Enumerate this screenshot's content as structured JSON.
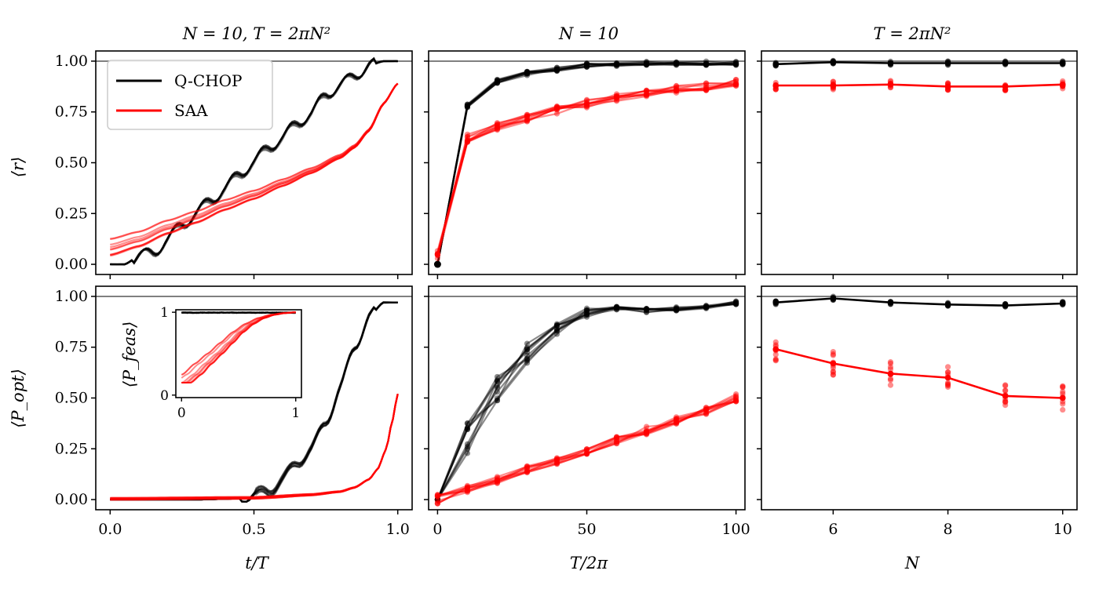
{
  "chart_data": {
    "type": "line",
    "colors": {
      "qchop": "#000000",
      "saa": "#ff0000",
      "reference": "#808080"
    },
    "legend": {
      "placement": "top-left of top-left panel",
      "entries": [
        "Q-CHOP",
        "SAA"
      ]
    },
    "column_titles": [
      "N = 10, T = 2πN²",
      "N = 10",
      "T = 2πN²"
    ],
    "row_ylabels": [
      "⟨r⟩",
      "⟨P_opt⟩"
    ],
    "column_xlabels": [
      "t/T",
      "T/2π",
      "N"
    ],
    "reference_line": 1.0,
    "yticks": [
      "0.00",
      "0.25",
      "0.50",
      "0.75",
      "1.00"
    ],
    "ylim": [
      -0.05,
      1.05
    ],
    "panels": [
      {
        "id": "r-vs-t",
        "row": 0,
        "col": 0,
        "xlim": [
          -0.05,
          1.05
        ],
        "ylim": [
          -0.05,
          1.05
        ],
        "xticks": [
          "0.0",
          "0.5",
          "1.0"
        ],
        "description_series": "trajectories of r vs normalized time",
        "series": [
          {
            "name": "Q-CHOP",
            "color": "#000000",
            "x": [
              0,
              0.05,
              0.1,
              0.15,
              0.2,
              0.25,
              0.3,
              0.35,
              0.4,
              0.45,
              0.5,
              0.55,
              0.6,
              0.65,
              0.7,
              0.75,
              0.8,
              0.85,
              0.9,
              0.95,
              1.0
            ],
            "y": [
              0.0,
              0.0,
              0.04,
              0.06,
              0.12,
              0.2,
              0.25,
              0.32,
              0.37,
              0.45,
              0.5,
              0.58,
              0.62,
              0.7,
              0.74,
              0.84,
              0.88,
              0.93,
              0.98,
              1.0,
              1.0
            ]
          },
          {
            "name": "SAA",
            "color": "#ff0000",
            "x": [
              0,
              0.1,
              0.2,
              0.3,
              0.4,
              0.5,
              0.6,
              0.7,
              0.8,
              0.85,
              0.9,
              0.95,
              1.0
            ],
            "y": [
              0.08,
              0.12,
              0.18,
              0.23,
              0.29,
              0.34,
              0.4,
              0.46,
              0.53,
              0.58,
              0.66,
              0.79,
              0.89
            ]
          }
        ]
      },
      {
        "id": "r-vs-T",
        "row": 0,
        "col": 1,
        "xlim": [
          -3,
          103
        ],
        "ylim": [
          -0.05,
          1.05
        ],
        "xticks": [
          "0",
          "50",
          "100"
        ],
        "series": [
          {
            "name": "Q-CHOP",
            "color": "#000000",
            "x": [
              0,
              10,
              20,
              30,
              40,
              50,
              60,
              70,
              80,
              90,
              100
            ],
            "y": [
              0.0,
              0.78,
              0.9,
              0.94,
              0.96,
              0.98,
              0.985,
              0.99,
              0.99,
              0.99,
              0.99
            ]
          },
          {
            "name": "SAA",
            "color": "#ff0000",
            "x": [
              0,
              10,
              20,
              30,
              40,
              50,
              60,
              70,
              80,
              90,
              100
            ],
            "y": [
              0.05,
              0.62,
              0.68,
              0.72,
              0.76,
              0.79,
              0.82,
              0.84,
              0.86,
              0.875,
              0.89
            ]
          }
        ]
      },
      {
        "id": "r-vs-N",
        "row": 0,
        "col": 2,
        "xlim": [
          4.75,
          10.25
        ],
        "ylim": [
          -0.05,
          1.05
        ],
        "xticks": [
          "6",
          "8",
          "10"
        ],
        "series": [
          {
            "name": "Q-CHOP",
            "color": "#000000",
            "x": [
              5,
              6,
              7,
              8,
              9,
              10
            ],
            "y": [
              0.985,
              0.995,
              0.99,
              0.99,
              0.99,
              0.99
            ]
          },
          {
            "name": "SAA",
            "color": "#ff0000",
            "x": [
              5,
              6,
              7,
              8,
              9,
              10
            ],
            "y": [
              0.88,
              0.88,
              0.885,
              0.875,
              0.875,
              0.885
            ]
          }
        ]
      },
      {
        "id": "popt-vs-t",
        "row": 1,
        "col": 0,
        "xlim": [
          -0.05,
          1.05
        ],
        "ylim": [
          -0.05,
          1.05
        ],
        "xticks": [
          "0.0",
          "0.5",
          "1.0"
        ],
        "series": [
          {
            "name": "Q-CHOP",
            "color": "#000000",
            "x": [
              0,
              0.3,
              0.45,
              0.5,
              0.55,
              0.6,
              0.65,
              0.7,
              0.75,
              0.8,
              0.85,
              0.9,
              0.95,
              1.0
            ],
            "y": [
              0.0,
              0.0,
              0.005,
              0.02,
              0.04,
              0.1,
              0.18,
              0.25,
              0.38,
              0.55,
              0.75,
              0.9,
              0.97,
              0.97
            ]
          },
          {
            "name": "SAA",
            "color": "#ff0000",
            "x": [
              0,
              0.5,
              0.7,
              0.8,
              0.85,
              0.9,
              0.93,
              0.96,
              0.98,
              1.0
            ],
            "y": [
              0.005,
              0.01,
              0.025,
              0.04,
              0.06,
              0.1,
              0.15,
              0.25,
              0.38,
              0.52
            ]
          }
        ]
      },
      {
        "id": "popt-vs-T",
        "row": 1,
        "col": 1,
        "xlim": [
          -3,
          103
        ],
        "ylim": [
          -0.05,
          1.05
        ],
        "xticks": [
          "0",
          "50",
          "100"
        ],
        "series": [
          {
            "name": "Q-CHOP",
            "color": "#000000",
            "x": [
              0,
              10,
              20,
              30,
              40,
              50,
              60,
              70,
              80,
              90,
              100
            ],
            "y": [
              0.0,
              0.3,
              0.55,
              0.72,
              0.85,
              0.92,
              0.94,
              0.93,
              0.94,
              0.95,
              0.97
            ]
          },
          {
            "name": "SAA",
            "color": "#ff0000",
            "x": [
              0,
              10,
              20,
              30,
              40,
              50,
              60,
              70,
              80,
              90,
              100
            ],
            "y": [
              0.0,
              0.05,
              0.1,
              0.15,
              0.19,
              0.24,
              0.29,
              0.34,
              0.39,
              0.44,
              0.5
            ]
          }
        ]
      },
      {
        "id": "popt-vs-N",
        "row": 1,
        "col": 2,
        "xlim": [
          4.75,
          10.25
        ],
        "ylim": [
          -0.05,
          1.05
        ],
        "xticks": [
          "6",
          "8",
          "10"
        ],
        "series": [
          {
            "name": "Q-CHOP",
            "color": "#000000",
            "x": [
              5,
              6,
              7,
              8,
              9,
              10
            ],
            "y": [
              0.97,
              0.99,
              0.97,
              0.96,
              0.955,
              0.965
            ]
          },
          {
            "name": "SAA",
            "color": "#ff0000",
            "x": [
              5,
              6,
              7,
              8,
              9,
              10
            ],
            "y": [
              0.74,
              0.67,
              0.62,
              0.6,
              0.51,
              0.5
            ]
          }
        ]
      }
    ],
    "inset": {
      "parent": "popt-vs-t",
      "placement": "upper-left",
      "ylabel": "⟨P_feas⟩",
      "xticks": [
        "0",
        "1"
      ],
      "yticks": [
        "0",
        "1"
      ],
      "xlim": [
        -0.05,
        1.05
      ],
      "ylim": [
        -0.03,
        1.03
      ],
      "series": [
        {
          "name": "Q-CHOP",
          "color": "#000000",
          "x": [
            0,
            0.5,
            1.0
          ],
          "y": [
            1.0,
            0.99,
            1.0
          ]
        },
        {
          "name": "SAA",
          "color": "#ff0000",
          "x": [
            0,
            0.1,
            0.2,
            0.3,
            0.4,
            0.5,
            0.6,
            0.7,
            0.8,
            0.9,
            1.0
          ],
          "y": [
            0.15,
            0.25,
            0.38,
            0.5,
            0.63,
            0.76,
            0.86,
            0.93,
            0.97,
            0.99,
            1.0
          ]
        }
      ]
    }
  }
}
